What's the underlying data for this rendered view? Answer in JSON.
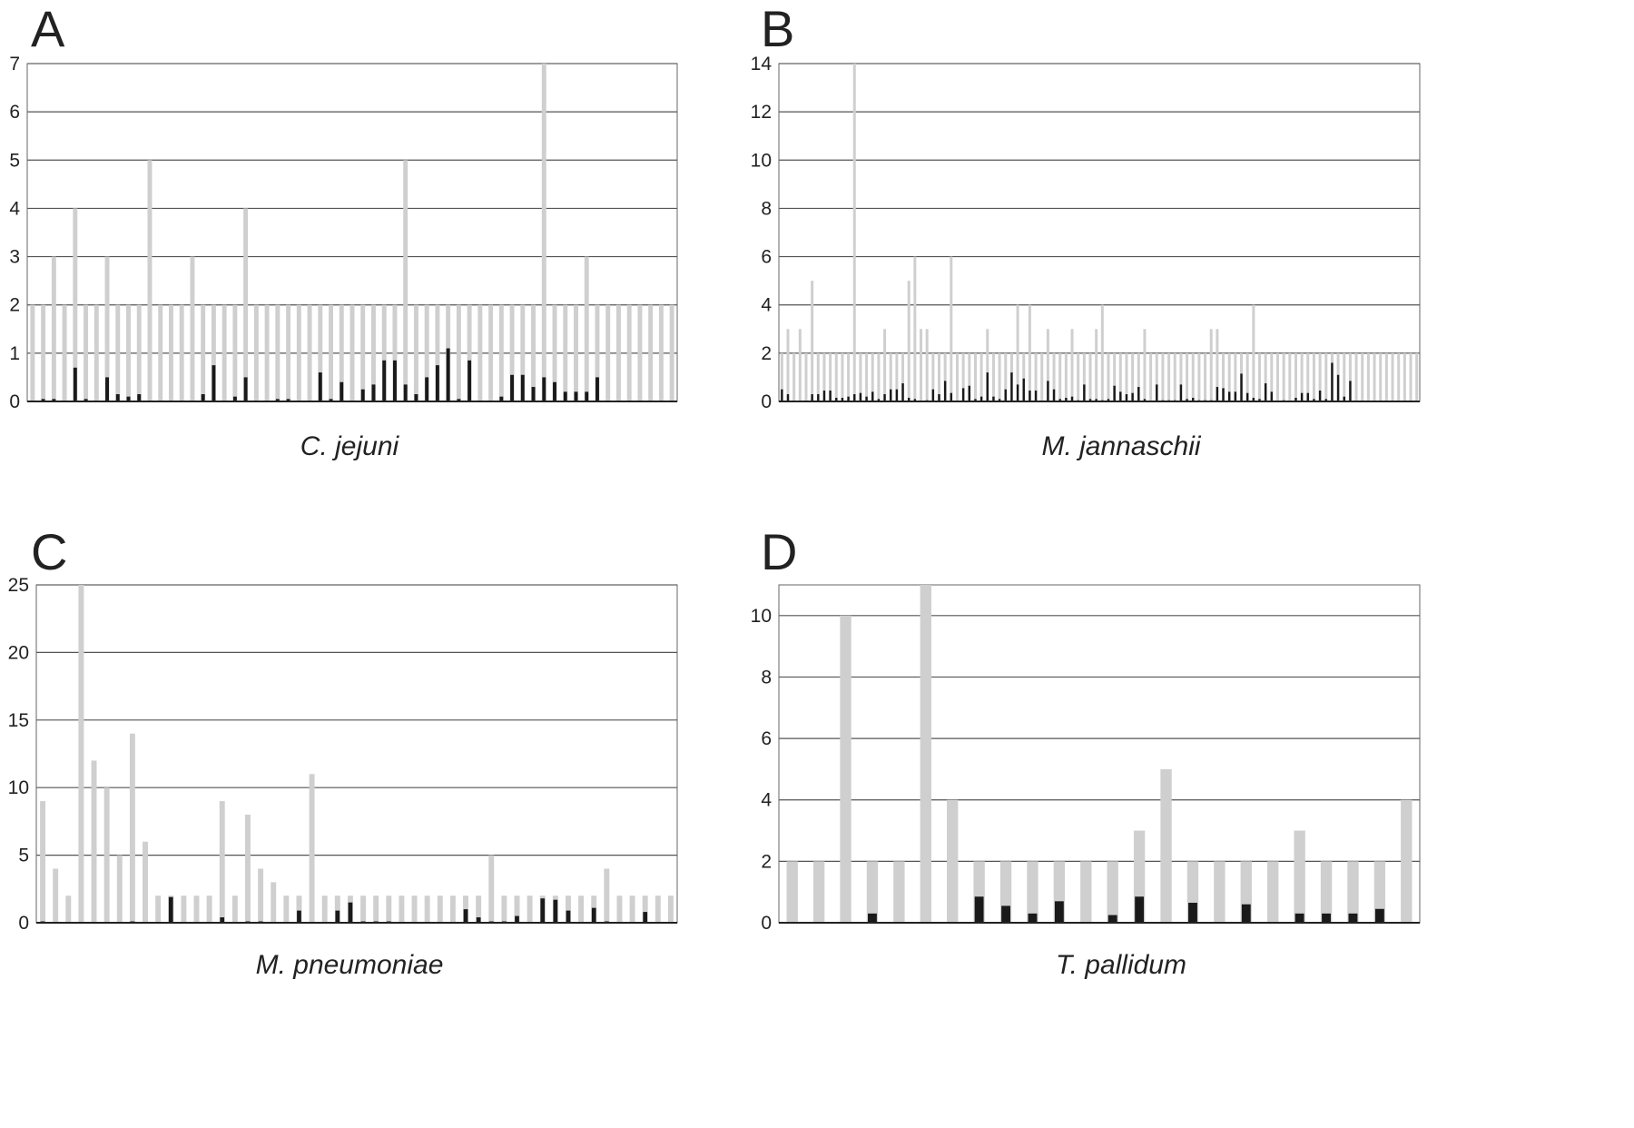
{
  "chart_data": [
    {
      "type": "bar",
      "panel_label": "A",
      "caption": "C. jejuni",
      "ylim": [
        0,
        7
      ],
      "yticks": [
        "0",
        "1",
        "2",
        "3",
        "4",
        "5",
        "6",
        "7"
      ],
      "grid": true,
      "series": [
        {
          "values": [
            2,
            2,
            3,
            2,
            4,
            2,
            2,
            3,
            2,
            2,
            2,
            5,
            2,
            2,
            2,
            3,
            2,
            2,
            2,
            2,
            4,
            2,
            2,
            2,
            2,
            2,
            2,
            2,
            2,
            2,
            2,
            2,
            2,
            2,
            2,
            5,
            2,
            2,
            2,
            2,
            2,
            2,
            2,
            2,
            2,
            2,
            2,
            2,
            7,
            2,
            2,
            2,
            3,
            2,
            2,
            2,
            2,
            2,
            2,
            2,
            2
          ]
        },
        {
          "values": [
            0,
            0.05,
            0.05,
            0,
            0.7,
            0.05,
            0,
            0.5,
            0.15,
            0.1,
            0.15,
            0,
            0,
            0,
            0,
            0,
            0.15,
            0.75,
            0,
            0.1,
            0.5,
            0,
            0,
            0.05,
            0.05,
            0,
            0,
            0.6,
            0.05,
            0.4,
            0,
            0.25,
            0.35,
            0.85,
            0.85,
            0.35,
            0.15,
            0.5,
            0.75,
            1.1,
            0.05,
            0.85,
            0,
            0,
            0.1,
            0.55,
            0.55,
            0.3,
            0.5,
            0.4,
            0.2,
            0.2,
            0.2,
            0.5,
            0,
            0,
            0,
            0,
            0,
            0,
            0
          ]
        }
      ]
    },
    {
      "type": "bar",
      "panel_label": "B",
      "caption": "M. jannaschii",
      "ylim": [
        0,
        14
      ],
      "yticks": [
        "0",
        "2",
        "4",
        "6",
        "8",
        "10",
        "12",
        "14"
      ],
      "grid": true,
      "series": [
        {
          "values": [
            2,
            3,
            2,
            3,
            2,
            5,
            2,
            2,
            2,
            2,
            2,
            2,
            14,
            2,
            2,
            2,
            2,
            3,
            2,
            2,
            2,
            5,
            6,
            3,
            3,
            2,
            2,
            2,
            6,
            2,
            2,
            2,
            2,
            2,
            3,
            2,
            2,
            2,
            2,
            4,
            2,
            4,
            2,
            2,
            3,
            2,
            2,
            2,
            3,
            2,
            2,
            2,
            3,
            4,
            2,
            2,
            2,
            2,
            2,
            2,
            3,
            2,
            2,
            2,
            2,
            2,
            2,
            2,
            2,
            2,
            2,
            3,
            3,
            2,
            2,
            2,
            2,
            2,
            4,
            2,
            2,
            2,
            2,
            2,
            2,
            2,
            2,
            2,
            2,
            2,
            2,
            2,
            2,
            2,
            2,
            2,
            2,
            2,
            2,
            2,
            2,
            2,
            2,
            2,
            2,
            2
          ]
        },
        {
          "values": [
            0.5,
            0.3,
            0,
            0,
            0,
            0.3,
            0.3,
            0.45,
            0.45,
            0.15,
            0.15,
            0.2,
            0.3,
            0.35,
            0.2,
            0.4,
            0.1,
            0.3,
            0.5,
            0.5,
            0.75,
            0.15,
            0.1,
            0,
            0.05,
            0.5,
            0.3,
            0.85,
            0.35,
            0,
            0.55,
            0.65,
            0.1,
            0.2,
            1.2,
            0.2,
            0.1,
            0.5,
            1.2,
            0.7,
            0.95,
            0.45,
            0.45,
            0,
            0.85,
            0.5,
            0.1,
            0.15,
            0.2,
            0.05,
            0.7,
            0.1,
            0.1,
            0.05,
            0.1,
            0.65,
            0.4,
            0.3,
            0.35,
            0.6,
            0.1,
            0,
            0.7,
            0.05,
            0.05,
            0.05,
            0.7,
            0.1,
            0.15,
            0.05,
            0.05,
            0.05,
            0.6,
            0.55,
            0.4,
            0.4,
            1.15,
            0.35,
            0.15,
            0.1,
            0.75,
            0.4,
            0,
            0.05,
            0,
            0.15,
            0.35,
            0.35,
            0.1,
            0.45,
            0.1,
            1.6,
            1.1,
            0.2,
            0.85,
            0,
            0,
            0,
            0,
            0,
            0,
            0,
            0,
            0,
            0,
            0
          ]
        }
      ]
    },
    {
      "type": "bar",
      "panel_label": "C",
      "caption": "M. pneumoniae",
      "ylim": [
        0,
        25
      ],
      "yticks": [
        "0",
        "5",
        "10",
        "15",
        "20",
        "25"
      ],
      "grid": true,
      "series": [
        {
          "values": [
            9,
            4,
            2,
            25,
            12,
            10,
            5,
            14,
            6,
            2,
            2,
            2,
            2,
            2,
            9,
            2,
            8,
            4,
            3,
            2,
            2,
            11,
            2,
            2,
            2,
            2,
            2,
            2,
            2,
            2,
            2,
            2,
            2,
            2,
            2,
            5,
            2,
            2,
            2,
            2,
            2,
            2,
            2,
            2,
            4,
            2,
            2,
            2,
            2,
            2
          ]
        },
        {
          "values": [
            0.1,
            0,
            0,
            0,
            0,
            0,
            0,
            0.1,
            0,
            0,
            1.9,
            0,
            0,
            0,
            0.4,
            0,
            0.1,
            0.1,
            0,
            0,
            0.9,
            0,
            0,
            0.9,
            1.5,
            0.1,
            0.1,
            0.1,
            0,
            0,
            0,
            0,
            0,
            1.0,
            0.4,
            0.1,
            0.1,
            0.5,
            0,
            1.8,
            1.7,
            0.9,
            0,
            1.1,
            0.1,
            0,
            0,
            0.8,
            0,
            0
          ]
        }
      ]
    },
    {
      "type": "bar",
      "panel_label": "D",
      "caption": "T. pallidum",
      "ylim": [
        0,
        11
      ],
      "yticks": [
        "0",
        "2",
        "4",
        "6",
        "8",
        "10"
      ],
      "grid": true,
      "series": [
        {
          "values": [
            2,
            2,
            10,
            2,
            2,
            11,
            4,
            2,
            2,
            2,
            2,
            2,
            2,
            3,
            5,
            2,
            2,
            2,
            2,
            3,
            2,
            2,
            2,
            4
          ]
        },
        {
          "values": [
            0,
            0,
            0,
            0.3,
            0,
            0,
            0,
            0.85,
            0.55,
            0.3,
            0.7,
            0,
            0.25,
            0.85,
            0,
            0.65,
            0,
            0.6,
            0,
            0.3,
            0.3,
            0.3,
            0.45,
            0
          ]
        }
      ]
    }
  ]
}
